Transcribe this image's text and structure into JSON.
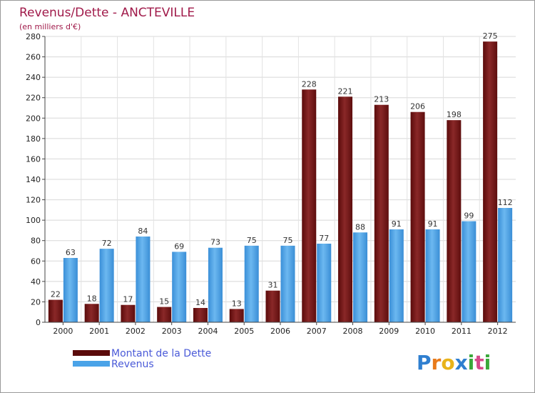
{
  "chart_data": {
    "type": "bar",
    "title": "Revenus/Dette - ANCTEVILLE",
    "subtitle": "(en milliers d'€)",
    "categories": [
      "2000",
      "2001",
      "2002",
      "2003",
      "2004",
      "2005",
      "2006",
      "2007",
      "2008",
      "2009",
      "2010",
      "2011",
      "2012"
    ],
    "series": [
      {
        "name": "Montant de la Dette",
        "color": "#7a1414",
        "values": [
          22,
          18,
          17,
          15,
          14,
          13,
          31,
          228,
          221,
          213,
          206,
          198,
          275
        ]
      },
      {
        "name": "Revenus",
        "color": "#4aa3e8",
        "values": [
          63,
          72,
          84,
          69,
          73,
          75,
          75,
          77,
          88,
          91,
          91,
          99,
          112
        ]
      }
    ],
    "ylim": [
      0,
      280
    ],
    "yticks": [
      0,
      20,
      40,
      60,
      80,
      100,
      120,
      140,
      160,
      180,
      200,
      220,
      240,
      260,
      280
    ],
    "grid": true,
    "legend": "bottom-left"
  },
  "logo": {
    "letters": [
      "P",
      "r",
      "o",
      "x",
      "i",
      "t",
      "i"
    ],
    "colors": [
      "#2f7fd0",
      "#e87a1a",
      "#e8b31a",
      "#2f7fd0",
      "#3aa83a",
      "#d64a8a",
      "#3aa83a"
    ]
  }
}
